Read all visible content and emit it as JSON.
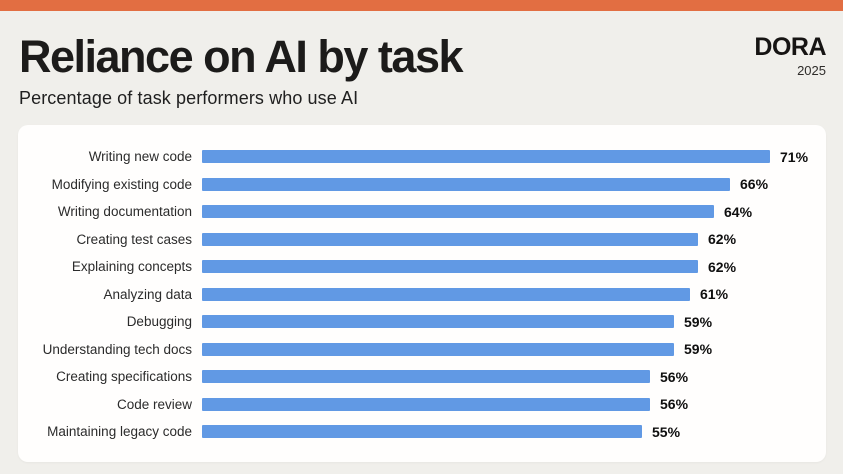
{
  "page": {
    "title": "Reliance on AI by task",
    "subtitle": "Percentage of task performers who use AI"
  },
  "logo": {
    "name": "DORA",
    "year": "2025"
  },
  "colors": {
    "accent_orange": "#E26E42",
    "background_beige": "#F0EFEB",
    "card_white": "#FFFEFD",
    "bar_blue": "#6199E4",
    "title_text": "#1C1B1A"
  },
  "chart_data": {
    "type": "bar",
    "orientation": "horizontal",
    "title": "Reliance on AI by task",
    "subtitle": "Percentage of task performers who use AI",
    "xlabel": "",
    "ylabel": "",
    "xlim": [
      0,
      75
    ],
    "grid": false,
    "legend": false,
    "value_suffix": "%",
    "bar_color": "#6199E4",
    "categories": [
      "Writing new code",
      "Modifying existing code",
      "Writing documentation",
      "Creating test cases",
      "Explaining concepts",
      "Analyzing data",
      "Debugging",
      "Understanding tech docs",
      "Creating specifications",
      "Code review",
      "Maintaining legacy code"
    ],
    "values": [
      71,
      66,
      64,
      62,
      62,
      61,
      59,
      59,
      56,
      56,
      55
    ]
  }
}
